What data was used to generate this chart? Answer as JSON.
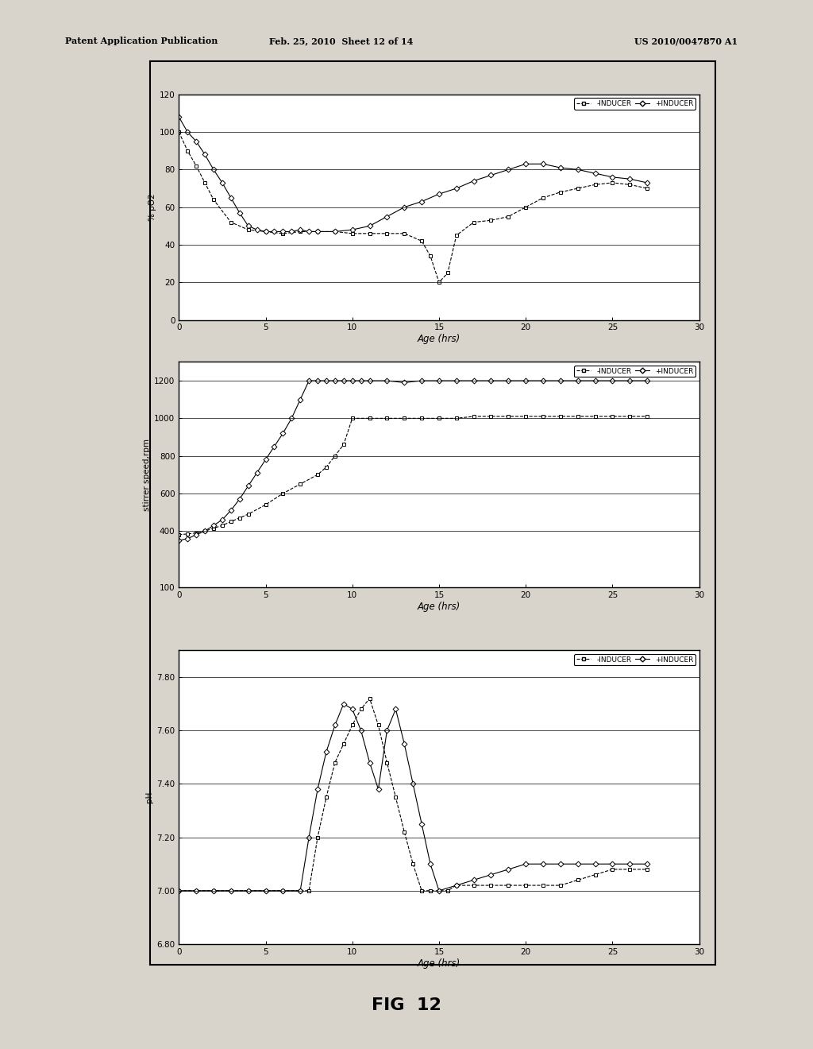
{
  "header_left": "Patent Application Publication",
  "header_mid": "Feb. 25, 2010  Sheet 12 of 14",
  "header_right": "US 2010/0047870 A1",
  "fig_label": "FIG  12",
  "page_bg": "#d8d4cc",
  "plot_bg": "#ffffff",
  "line_color": "#000000",
  "plots": [
    {
      "ylabel": "% pO2",
      "xlabel": "Age (hrs)",
      "xlim": [
        0,
        30
      ],
      "ylim": [
        0,
        120
      ],
      "yticks": [
        0,
        20,
        40,
        60,
        80,
        100,
        120
      ],
      "xticks": [
        0,
        5,
        10,
        15,
        20,
        25,
        30
      ],
      "minus_inducer_x": [
        0,
        0.5,
        1,
        1.5,
        2,
        3,
        4,
        5,
        6,
        7,
        8,
        9,
        10,
        11,
        12,
        13,
        14,
        14.5,
        15,
        15.5,
        16,
        17,
        18,
        19,
        20,
        21,
        22,
        23,
        24,
        25,
        26,
        27
      ],
      "minus_inducer_y": [
        100,
        90,
        82,
        73,
        64,
        52,
        48,
        47,
        46,
        47,
        47,
        47,
        46,
        46,
        46,
        46,
        42,
        34,
        20,
        25,
        45,
        52,
        53,
        55,
        60,
        65,
        68,
        70,
        72,
        73,
        72,
        70
      ],
      "plus_inducer_x": [
        0,
        0.5,
        1,
        1.5,
        2,
        2.5,
        3,
        3.5,
        4,
        4.5,
        5,
        5.5,
        6,
        6.5,
        7,
        7.5,
        8,
        9,
        10,
        11,
        12,
        13,
        14,
        15,
        16,
        17,
        18,
        19,
        20,
        21,
        22,
        23,
        24,
        25,
        26,
        27
      ],
      "plus_inducer_y": [
        108,
        100,
        95,
        88,
        80,
        73,
        65,
        57,
        50,
        48,
        47,
        47,
        47,
        47,
        48,
        47,
        47,
        47,
        48,
        50,
        55,
        60,
        63,
        67,
        70,
        74,
        77,
        80,
        83,
        83,
        81,
        80,
        78,
        76,
        75,
        73
      ]
    },
    {
      "ylabel": "stirrer speed,rpm",
      "xlabel": "Age (hrs)",
      "xlim": [
        0,
        30
      ],
      "ylim": [
        100,
        1300
      ],
      "yticks": [
        100,
        400,
        600,
        800,
        1000,
        1200
      ],
      "ytick_labels": [
        "100",
        "400",
        "600",
        "800",
        "1000",
        "1200"
      ],
      "xticks": [
        0,
        5,
        10,
        15,
        20,
        25,
        30
      ],
      "minus_inducer_x": [
        0,
        0.5,
        1,
        1.5,
        2,
        2.5,
        3,
        3.5,
        4,
        5,
        6,
        7,
        8,
        8.5,
        9,
        9.5,
        10,
        11,
        12,
        13,
        14,
        15,
        16,
        17,
        18,
        19,
        20,
        21,
        22,
        23,
        24,
        25,
        26,
        27
      ],
      "minus_inducer_y": [
        380,
        385,
        390,
        400,
        415,
        430,
        450,
        470,
        490,
        540,
        600,
        650,
        700,
        740,
        800,
        860,
        1000,
        1000,
        1000,
        1000,
        1000,
        1000,
        1000,
        1010,
        1010,
        1010,
        1010,
        1010,
        1010,
        1010,
        1010,
        1010,
        1010,
        1010
      ],
      "plus_inducer_x": [
        0,
        0.5,
        1,
        1.5,
        2,
        2.5,
        3,
        3.5,
        4,
        4.5,
        5,
        5.5,
        6,
        6.5,
        7,
        7.5,
        8,
        8.5,
        9,
        9.5,
        10,
        10.5,
        11,
        12,
        13,
        14,
        15,
        16,
        17,
        18,
        19,
        20,
        21,
        22,
        23,
        24,
        25,
        26,
        27
      ],
      "plus_inducer_y": [
        350,
        360,
        380,
        400,
        430,
        460,
        510,
        570,
        640,
        710,
        780,
        850,
        920,
        1000,
        1100,
        1200,
        1200,
        1200,
        1200,
        1200,
        1200,
        1200,
        1200,
        1200,
        1190,
        1200,
        1200,
        1200,
        1200,
        1200,
        1200,
        1200,
        1200,
        1200,
        1200,
        1200,
        1200,
        1200,
        1200
      ]
    },
    {
      "ylabel": "pH",
      "xlabel": "Age (hrs)",
      "xlim": [
        0,
        30
      ],
      "ylim": [
        6.8,
        7.9
      ],
      "yticks": [
        6.8,
        7.0,
        7.2,
        7.4,
        7.6,
        7.8
      ],
      "ytick_labels": [
        "6.80",
        "7.00",
        "7.20",
        "7.40",
        "7.60",
        "7.80"
      ],
      "xticks": [
        0,
        5,
        10,
        15,
        20,
        25,
        30
      ],
      "minus_inducer_x": [
        0,
        1,
        2,
        3,
        4,
        5,
        6,
        7,
        7.5,
        8,
        8.5,
        9,
        9.5,
        10,
        10.5,
        11,
        11.5,
        12,
        12.5,
        13,
        13.5,
        14,
        14.5,
        15,
        15.5,
        16,
        17,
        18,
        19,
        20,
        21,
        22,
        23,
        24,
        25,
        26,
        27
      ],
      "minus_inducer_y": [
        7.0,
        7.0,
        7.0,
        7.0,
        7.0,
        7.0,
        7.0,
        7.0,
        7.0,
        7.2,
        7.35,
        7.48,
        7.55,
        7.62,
        7.68,
        7.72,
        7.62,
        7.48,
        7.35,
        7.22,
        7.1,
        7.0,
        7.0,
        7.0,
        7.0,
        7.02,
        7.02,
        7.02,
        7.02,
        7.02,
        7.02,
        7.02,
        7.04,
        7.06,
        7.08,
        7.08,
        7.08
      ],
      "plus_inducer_x": [
        0,
        1,
        2,
        3,
        4,
        5,
        6,
        7,
        7.5,
        8,
        8.5,
        9,
        9.5,
        10,
        10.5,
        11,
        11.5,
        12,
        12.5,
        13,
        13.5,
        14,
        14.5,
        15,
        16,
        17,
        18,
        19,
        20,
        21,
        22,
        23,
        24,
        25,
        26,
        27
      ],
      "plus_inducer_y": [
        7.0,
        7.0,
        7.0,
        7.0,
        7.0,
        7.0,
        7.0,
        7.0,
        7.2,
        7.38,
        7.52,
        7.62,
        7.7,
        7.68,
        7.6,
        7.48,
        7.38,
        7.6,
        7.68,
        7.55,
        7.4,
        7.25,
        7.1,
        7.0,
        7.02,
        7.04,
        7.06,
        7.08,
        7.1,
        7.1,
        7.1,
        7.1,
        7.1,
        7.1,
        7.1,
        7.1
      ]
    }
  ],
  "legend_labels": [
    "-INDUCER",
    "+INDUCER"
  ]
}
